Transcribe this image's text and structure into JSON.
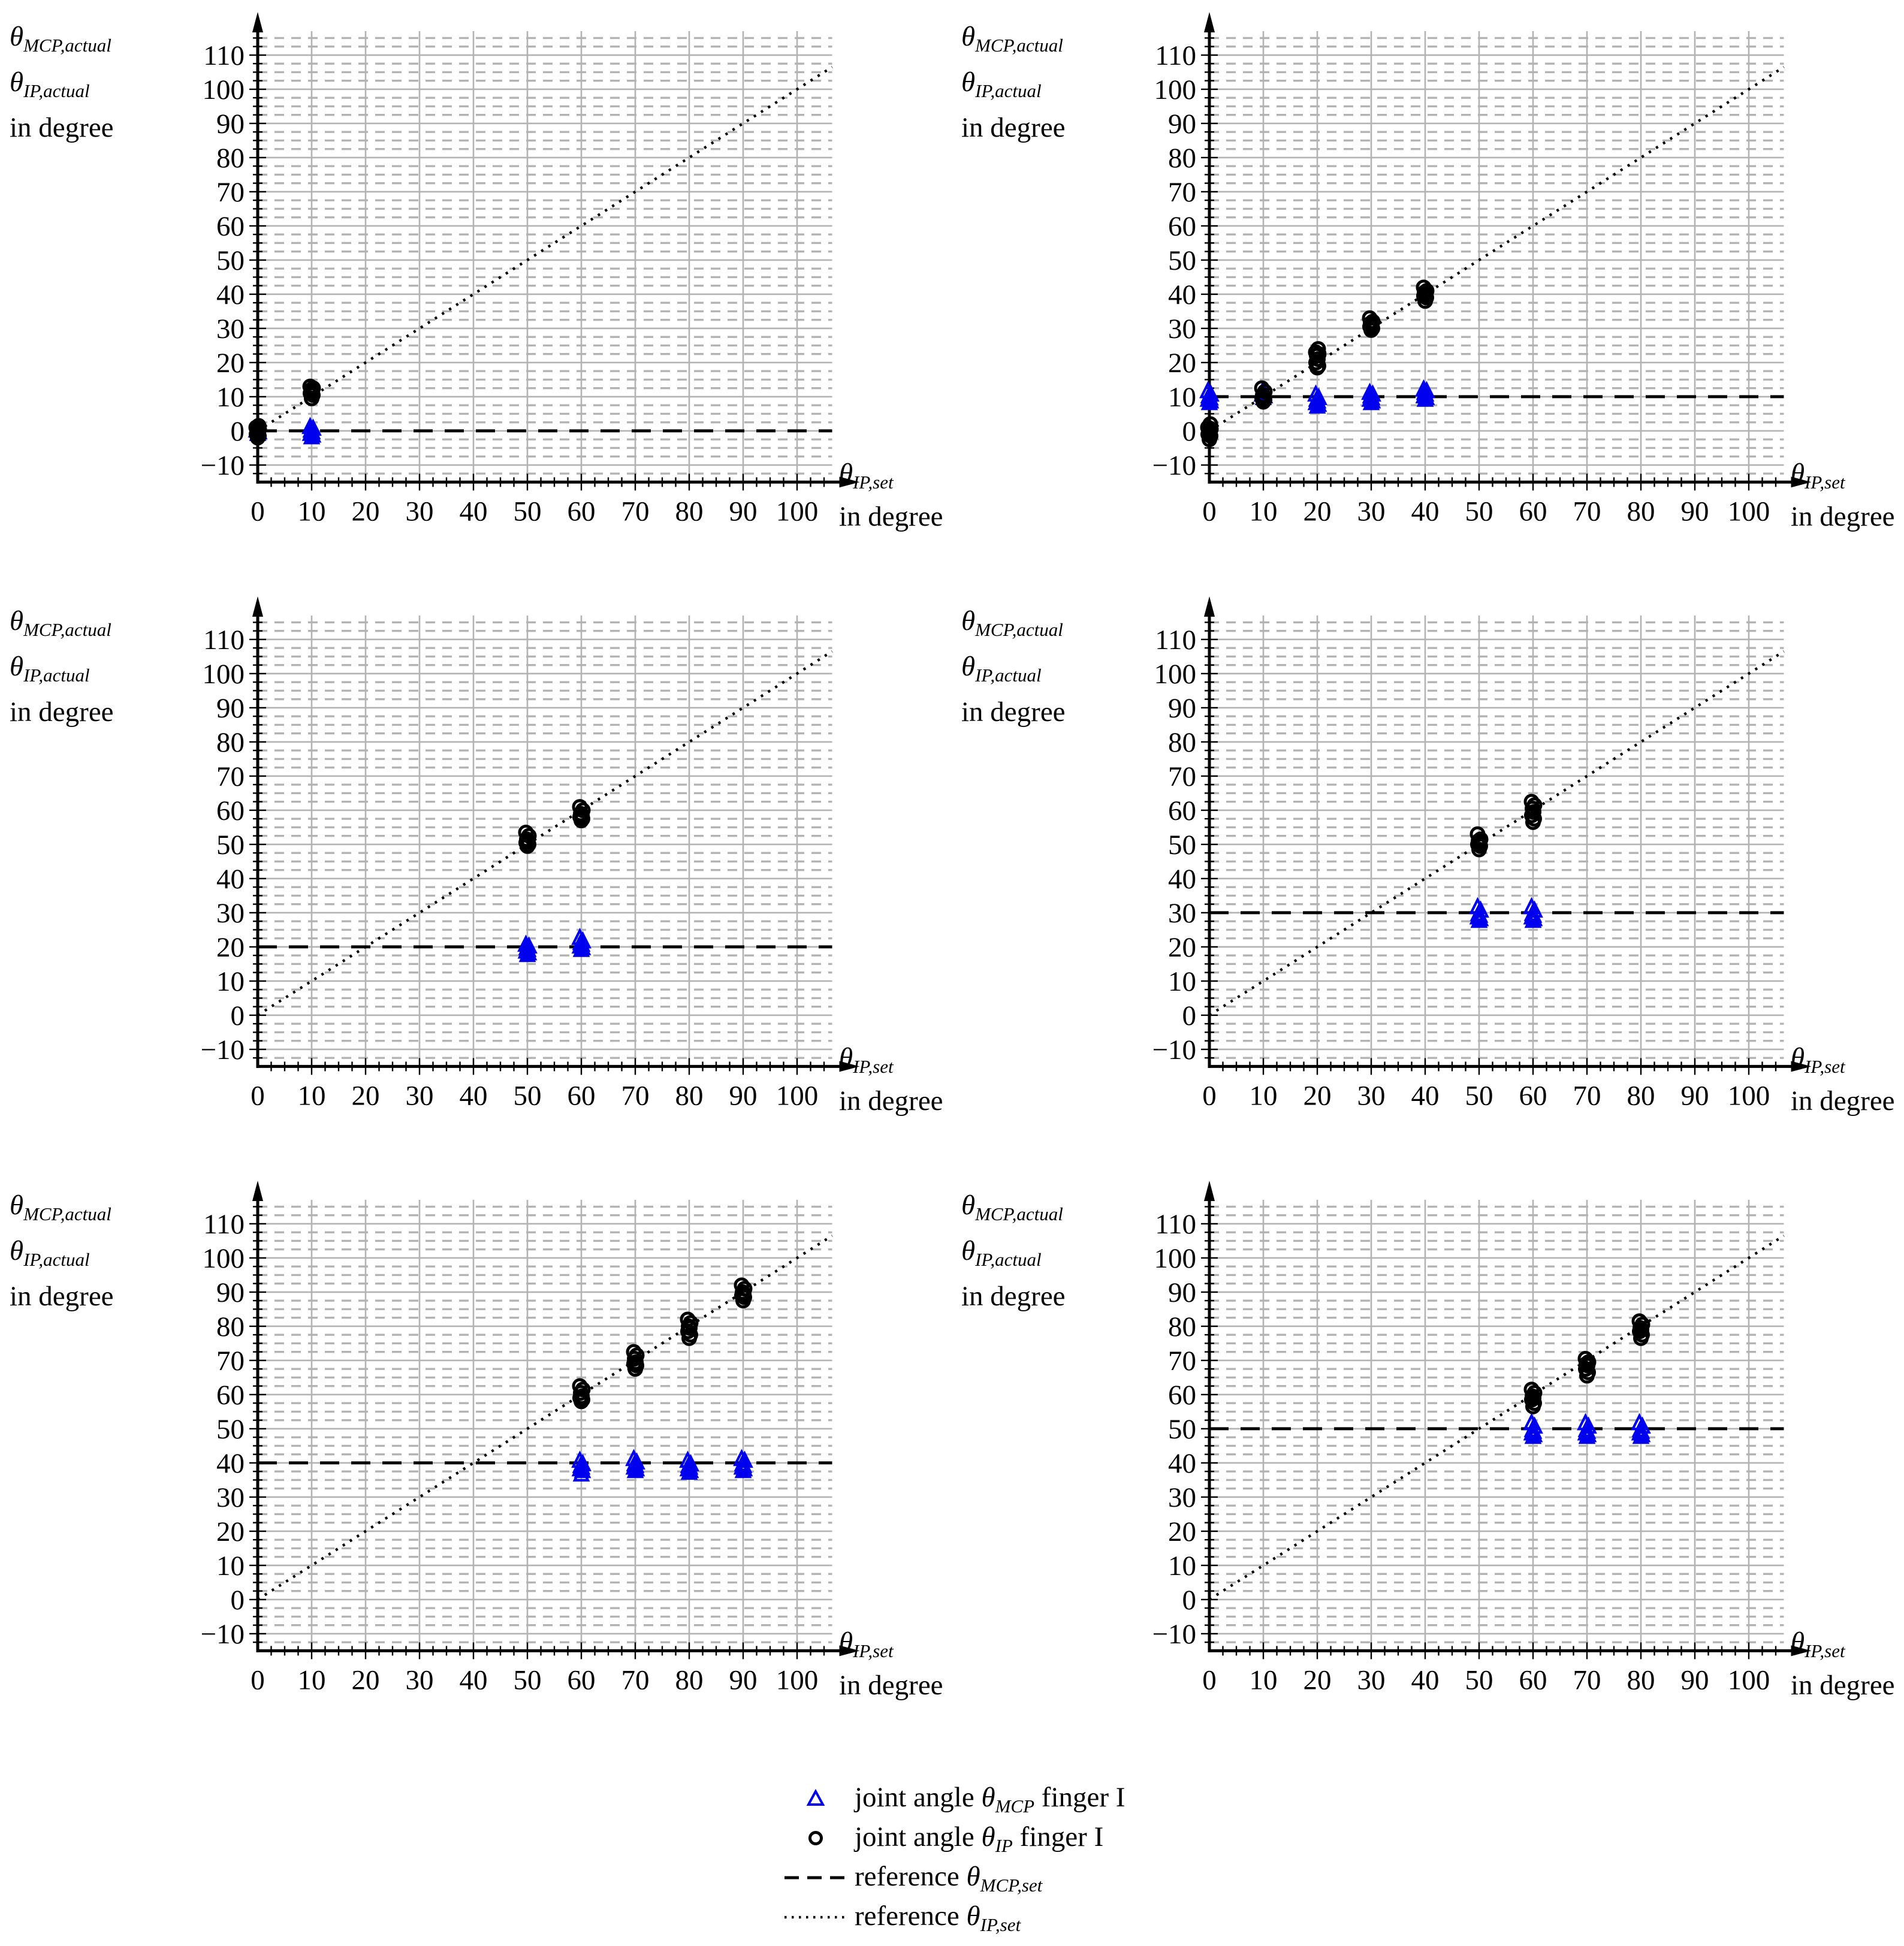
{
  "figure": {
    "y_axis_label_lines": [
      "θ_MCP,actual",
      "θ_IP,actual",
      "in degree"
    ],
    "x_axis_label_lines": [
      "θ_IP,set",
      "in degree"
    ],
    "x_ticks": [
      0,
      10,
      20,
      30,
      40,
      50,
      60,
      70,
      80,
      90,
      100
    ],
    "y_ticks": [
      -10,
      0,
      10,
      20,
      30,
      40,
      50,
      60,
      70,
      80,
      90,
      100,
      110
    ],
    "x_range": [
      0,
      106.5
    ],
    "y_range": [
      -15,
      117
    ],
    "minor_step": 2.5,
    "grid": "major solid gray both axes, minor dashed gray horizontal only"
  },
  "colors": {
    "mcp_marker": "#0000ee",
    "ip_marker": "#000000",
    "grid": "#b3b3b3",
    "axis": "#000000",
    "reference": "#000000",
    "background": "#ffffff"
  },
  "chart_data": [
    {
      "position": "top-left",
      "type": "scatter",
      "title": "",
      "xlabel": "θ_IP,set in degree",
      "ylabel": "θ_MCP,actual θ_IP,actual in degree",
      "reference_theta_mcp_set": 0,
      "reference_theta_ip_set": "y = x diagonal",
      "series": [
        {
          "name": "joint angle θ_MCP finger I",
          "marker": "triangle",
          "color": "#0000ee",
          "clusters": [
            {
              "x": 0,
              "y": [
                -1,
                -0.5,
                0,
                0.5
              ]
            },
            {
              "x": 10,
              "y": [
                -2,
                -1.5,
                -1,
                -0.5,
                0,
                0.5,
                1
              ]
            }
          ]
        },
        {
          "name": "joint angle θ_IP finger I",
          "marker": "circle",
          "color": "#000000",
          "clusters": [
            {
              "x": 0,
              "y": [
                -2,
                -1.5,
                -1,
                -0.5,
                0,
                0.5,
                1,
                1.5
              ]
            },
            {
              "x": 10,
              "y": [
                9.5,
                10.5,
                11,
                11.5,
                12,
                12.5,
                13
              ]
            }
          ]
        }
      ]
    },
    {
      "position": "top-right",
      "type": "scatter",
      "title": "",
      "xlabel": "θ_IP,set in degree",
      "ylabel": "θ_MCP,actual θ_IP,actual in degree",
      "reference_theta_mcp_set": 10,
      "reference_theta_ip_set": "y = x diagonal",
      "series": [
        {
          "name": "joint angle θ_MCP finger I",
          "marker": "triangle",
          "color": "#0000ee",
          "clusters": [
            {
              "x": 0,
              "y": [
                8,
                8.5,
                9,
                9.5,
                10,
                10.5,
                11.5
              ]
            },
            {
              "x": 10,
              "y": [
                9.5,
                10,
                10.5,
                11,
                11.5
              ]
            },
            {
              "x": 20,
              "y": [
                7,
                7.5,
                8,
                8.5,
                9,
                9.5,
                10.5
              ]
            },
            {
              "x": 30,
              "y": [
                8,
                8.5,
                9,
                9.5,
                10,
                10.5,
                11
              ]
            },
            {
              "x": 40,
              "y": [
                9,
                9.5,
                10,
                10.5,
                11,
                11.5,
                12
              ]
            }
          ]
        },
        {
          "name": "joint angle θ_IP finger I",
          "marker": "circle",
          "color": "#000000",
          "clusters": [
            {
              "x": 0,
              "y": [
                -2.5,
                -1.5,
                -1,
                -0.5,
                0,
                0.5,
                1,
                2
              ]
            },
            {
              "x": 10,
              "y": [
                8.5,
                9,
                9.5,
                10,
                10.5,
                11.5,
                12.5
              ]
            },
            {
              "x": 20,
              "y": [
                18.5,
                19,
                20,
                21,
                22,
                22.5,
                23,
                24
              ]
            },
            {
              "x": 30,
              "y": [
                29.5,
                30,
                30.5,
                31,
                31.5,
                32,
                33
              ]
            },
            {
              "x": 40,
              "y": [
                38,
                39,
                39.5,
                40,
                40.5,
                41,
                42
              ]
            }
          ]
        }
      ]
    },
    {
      "position": "middle-left",
      "type": "scatter",
      "title": "",
      "xlabel": "θ_IP,set in degree",
      "ylabel": "θ_MCP,actual θ_IP,actual in degree",
      "reference_theta_mcp_set": 20,
      "reference_theta_ip_set": "y = x diagonal",
      "series": [
        {
          "name": "joint angle θ_MCP finger I",
          "marker": "triangle",
          "color": "#0000ee",
          "clusters": [
            {
              "x": 50,
              "y": [
                17.5,
                18,
                18.5,
                19,
                19.5,
                20,
                20.5
              ]
            },
            {
              "x": 60,
              "y": [
                19,
                19.5,
                20,
                20.5,
                21,
                21.5,
                22.5
              ]
            }
          ]
        },
        {
          "name": "joint angle θ_IP finger I",
          "marker": "circle",
          "color": "#000000",
          "clusters": [
            {
              "x": 50,
              "y": [
                49.5,
                50,
                50.5,
                51,
                51.5,
                52.5,
                53.5
              ]
            },
            {
              "x": 60,
              "y": [
                57,
                57.5,
                58,
                58.5,
                59,
                60,
                61
              ]
            }
          ]
        }
      ]
    },
    {
      "position": "middle-right",
      "type": "scatter",
      "title": "",
      "xlabel": "θ_IP,set in degree",
      "ylabel": "θ_MCP,actual θ_IP,actual in degree",
      "reference_theta_mcp_set": 30,
      "reference_theta_ip_set": "y = x diagonal",
      "series": [
        {
          "name": "joint angle θ_MCP finger I",
          "marker": "triangle",
          "color": "#0000ee",
          "clusters": [
            {
              "x": 50,
              "y": [
                27.5,
                28,
                28.5,
                29,
                29.5,
                30.5,
                31.5
              ]
            },
            {
              "x": 60,
              "y": [
                27.5,
                28,
                28.5,
                29,
                29.5,
                30.5,
                31.5
              ]
            }
          ]
        },
        {
          "name": "joint angle θ_IP finger I",
          "marker": "circle",
          "color": "#000000",
          "clusters": [
            {
              "x": 50,
              "y": [
                48.5,
                49.5,
                50,
                50.5,
                51,
                51.5,
                53
              ]
            },
            {
              "x": 60,
              "y": [
                56.5,
                57.5,
                58.5,
                59.5,
                60.5,
                61.5,
                62.5
              ]
            }
          ]
        }
      ]
    },
    {
      "position": "bottom-left",
      "type": "scatter",
      "title": "",
      "xlabel": "θ_IP,set in degree",
      "ylabel": "θ_MCP,actual θ_IP,actual in degree",
      "reference_theta_mcp_set": 40,
      "reference_theta_ip_set": "y = x diagonal",
      "series": [
        {
          "name": "joint angle θ_MCP finger I",
          "marker": "triangle",
          "color": "#0000ee",
          "clusters": [
            {
              "x": 60,
              "y": [
                36.5,
                37.5,
                38,
                38.5,
                39,
                39.5,
                40.5
              ]
            },
            {
              "x": 70,
              "y": [
                37.5,
                38,
                38.5,
                39,
                39.5,
                40,
                41
              ]
            },
            {
              "x": 80,
              "y": [
                37,
                37.5,
                38,
                38.5,
                39,
                39.5,
                40.5
              ]
            },
            {
              "x": 90,
              "y": [
                37.5,
                38,
                38.5,
                39,
                39.5,
                40.5,
                41
              ]
            }
          ]
        },
        {
          "name": "joint angle θ_IP finger I",
          "marker": "circle",
          "color": "#000000",
          "clusters": [
            {
              "x": 60,
              "y": [
                58,
                58.5,
                59,
                59.5,
                60.5,
                61.5,
                62.5
              ]
            },
            {
              "x": 70,
              "y": [
                67.5,
                68.5,
                69,
                69.5,
                70.5,
                71.5,
                72.5
              ]
            },
            {
              "x": 80,
              "y": [
                76.5,
                77.5,
                78.5,
                79.5,
                80,
                81,
                82
              ]
            },
            {
              "x": 90,
              "y": [
                87.5,
                88.5,
                89,
                89.5,
                90,
                91,
                92
              ]
            }
          ]
        }
      ]
    },
    {
      "position": "bottom-right",
      "type": "scatter",
      "title": "",
      "xlabel": "θ_IP,set in degree",
      "ylabel": "θ_MCP,actual θ_IP,actual in degree",
      "reference_theta_mcp_set": 50,
      "reference_theta_ip_set": "y = x diagonal",
      "series": [
        {
          "name": "joint angle θ_MCP finger I",
          "marker": "triangle",
          "color": "#0000ee",
          "clusters": [
            {
              "x": 60,
              "y": [
                47.5,
                48,
                48.5,
                49,
                49.5,
                50.5,
                51.5
              ]
            },
            {
              "x": 70,
              "y": [
                47.5,
                48,
                48.5,
                49,
                49.5,
                50.5,
                51.5
              ]
            },
            {
              "x": 80,
              "y": [
                47.5,
                48,
                48.5,
                49,
                49.5,
                50.5,
                51.5
              ]
            }
          ]
        },
        {
          "name": "joint angle θ_IP finger I",
          "marker": "circle",
          "color": "#000000",
          "clusters": [
            {
              "x": 60,
              "y": [
                56.5,
                57.5,
                58.5,
                59,
                59.5,
                60.5,
                61.5
              ]
            },
            {
              "x": 70,
              "y": [
                65.5,
                66.5,
                67.5,
                68.5,
                69,
                69.5,
                70.5
              ]
            },
            {
              "x": 80,
              "y": [
                76.5,
                77.5,
                78.5,
                79,
                79.5,
                80.5,
                81.5
              ]
            }
          ]
        }
      ]
    }
  ],
  "legend": {
    "position": "bottom-center",
    "entries": [
      {
        "marker": "triangle",
        "color": "#0000ee",
        "label": "joint angle θ_MCP finger I"
      },
      {
        "marker": "circle",
        "color": "#000000",
        "label": "joint angle θ_IP finger I"
      },
      {
        "marker": "dashed-line",
        "color": "#000000",
        "label": "reference θ_MCP,set"
      },
      {
        "marker": "dotted-line",
        "color": "#000000",
        "label": "reference θ_IP,set"
      }
    ]
  }
}
